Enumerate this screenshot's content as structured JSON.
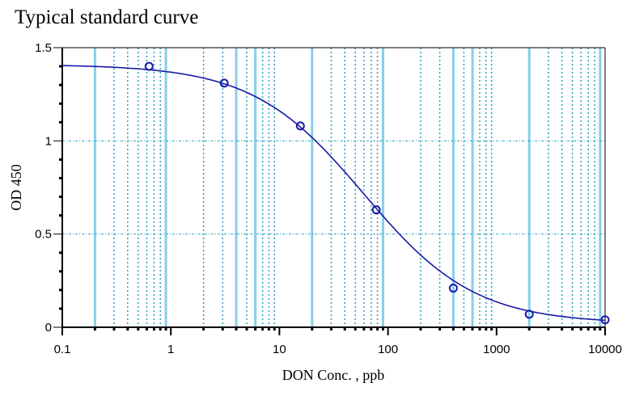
{
  "chart_data": {
    "type": "line",
    "title": "Typical standard curve",
    "xlabel": "DON Conc. , ppb",
    "ylabel": "OD 450",
    "xscale": "log",
    "xlim": [
      0.1,
      10000
    ],
    "ylim": [
      0,
      1.5
    ],
    "x_ticks": [
      {
        "value": 0.1,
        "label": "0.1"
      },
      {
        "value": 1,
        "label": "1"
      },
      {
        "value": 10,
        "label": "10"
      },
      {
        "value": 100,
        "label": "100"
      },
      {
        "value": 1000,
        "label": "1000"
      },
      {
        "value": 10000,
        "label": "10000"
      }
    ],
    "y_ticks": [
      {
        "value": 0,
        "label": "0"
      },
      {
        "value": 0.5,
        "label": "0.5"
      },
      {
        "value": 1,
        "label": "1"
      },
      {
        "value": 1.5,
        "label": "1.5"
      }
    ],
    "grid": true,
    "series": [
      {
        "name": "standards",
        "points": [
          {
            "x": 0.63,
            "y": 1.4
          },
          {
            "x": 3.1,
            "y": 1.31
          },
          {
            "x": 15.6,
            "y": 1.08
          },
          {
            "x": 78,
            "y": 0.63
          },
          {
            "x": 400,
            "y": 0.21
          },
          {
            "x": 2000,
            "y": 0.07
          },
          {
            "x": 10000,
            "y": 0.04
          }
        ]
      },
      {
        "name": "fit",
        "model": "4PL",
        "top": 1.41,
        "bottom": 0.02,
        "ec50": 60,
        "hill": 0.85
      }
    ],
    "colors": {
      "curve": "#1a1aa6",
      "grid_solid": "#87ceeb",
      "grid_dotted": "#2aa0c0",
      "axis": "#000000"
    }
  }
}
